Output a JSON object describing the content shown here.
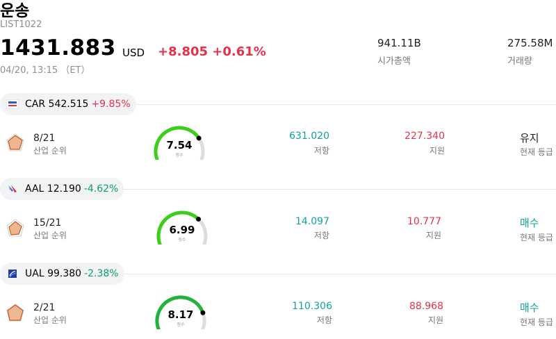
{
  "header": {
    "title": "운송",
    "code": "LIST1022",
    "price": "1431.883",
    "currency": "USD",
    "change": "+8.805 +0.61%",
    "time": "04/20, 13:15 （ET）",
    "market_cap_value": "941.11B",
    "market_cap_label": "시가총액",
    "volume_value": "275.58M",
    "volume_label": "거래량"
  },
  "sections": [
    {
      "ticker": "CAR",
      "price": "542.515",
      "change": "+9.85%",
      "direction": "up",
      "logo_icon": "business-insider-logo-icon",
      "rank": "8/21",
      "rank_label": "산업 순위",
      "score": "7.54",
      "score_fraction": 0.754,
      "score_label": "점수",
      "resistance": "631.020",
      "resistance_label": "저항",
      "support": "227.340",
      "support_label": "지원",
      "rating": "유지",
      "rating_label": "현재 등급",
      "rating_color": "#222222"
    },
    {
      "ticker": "AAL",
      "price": "12.190",
      "change": "-4.62%",
      "direction": "down",
      "logo_icon": "american-airlines-logo-icon",
      "rank": "15/21",
      "rank_label": "산업 순위",
      "score": "6.99",
      "score_fraction": 0.699,
      "score_label": "점수",
      "resistance": "14.097",
      "resistance_label": "저항",
      "support": "10.777",
      "support_label": "지원",
      "rating": "매수",
      "rating_label": "현재 등급",
      "rating_color": "#12a39a"
    },
    {
      "ticker": "UAL",
      "price": "99.380",
      "change": "-2.38%",
      "direction": "down",
      "logo_icon": "united-airlines-logo-icon",
      "rank": "2/21",
      "rank_label": "산업 순위",
      "score": "8.17",
      "score_fraction": 0.817,
      "score_label": "점수",
      "resistance": "110.306",
      "resistance_label": "저항",
      "support": "88.968",
      "support_label": "지원",
      "rating": "매수",
      "rating_label": "현재 등급",
      "rating_color": "#12a39a"
    }
  ],
  "colors": {
    "up": "#e8304a",
    "down": "#0e9f6e",
    "resistance": "#12a39a",
    "support": "#e8304a",
    "gauge_track": "#dcdde3",
    "gauge_green": "#3ccf1a",
    "radar_fill": "#e07a3a"
  }
}
